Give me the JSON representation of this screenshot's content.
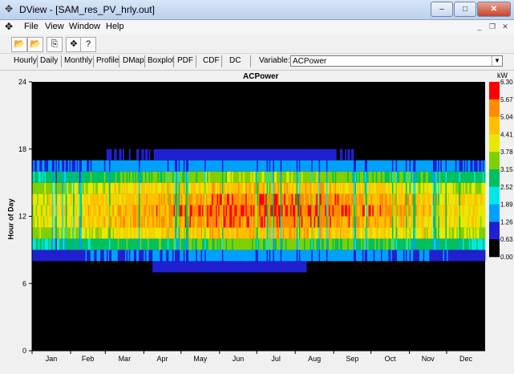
{
  "window": {
    "title": "DView - [SAM_res_PV_hrly.out]",
    "buttons": {
      "minimize": "–",
      "maximize": "□",
      "close": "✕"
    }
  },
  "menu": {
    "items": [
      "File",
      "View",
      "Window",
      "Help"
    ]
  },
  "tabs": [
    "Hourly",
    "Daily",
    "Monthly",
    "Profile",
    "DMap",
    "Boxplot",
    "PDF",
    "CDF",
    "DC"
  ],
  "active_tab": "DMap",
  "variable": {
    "label": "Variable:",
    "value": "ACPower"
  },
  "colors": {
    "background": "#f0f0f0",
    "plot_bg": "#000000"
  },
  "chart_data": {
    "type": "heatmap",
    "title": "ACPower",
    "ylabel": "Hour of Day",
    "xlabel": "",
    "unit": "kW",
    "ylim": [
      0,
      24
    ],
    "yticks": [
      0,
      6,
      12,
      18,
      24
    ],
    "xticks": [
      "Jan",
      "Feb",
      "Mar",
      "Apr",
      "May",
      "Jun",
      "Jul",
      "Aug",
      "Sep",
      "Oct",
      "Nov",
      "Dec"
    ],
    "colorbar": {
      "ticks": [
        "0.00",
        "0.63",
        "1.26",
        "1.89",
        "2.52",
        "3.15",
        "3.78",
        "4.41",
        "5.04",
        "5.67",
        "6.30"
      ],
      "colors": [
        "#000000",
        "#2020d0",
        "#00a0ff",
        "#00e8e8",
        "#00c060",
        "#80d000",
        "#e8e800",
        "#ffc000",
        "#ff8c00",
        "#ff0000"
      ]
    },
    "hourly_profile_kW": [
      {
        "hour": 7,
        "value": 0.8
      },
      {
        "hour": 8,
        "value": 1.4
      },
      {
        "hour": 9,
        "value": 3.2
      },
      {
        "hour": 10,
        "value": 4.6
      },
      {
        "hour": 11,
        "value": 5.2
      },
      {
        "hour": 12,
        "value": 5.4
      },
      {
        "hour": 13,
        "value": 5.2
      },
      {
        "hour": 14,
        "value": 4.6
      },
      {
        "hour": 15,
        "value": 3.4
      },
      {
        "hour": 16,
        "value": 1.6
      },
      {
        "hour": 17,
        "value": 0.9
      }
    ]
  }
}
